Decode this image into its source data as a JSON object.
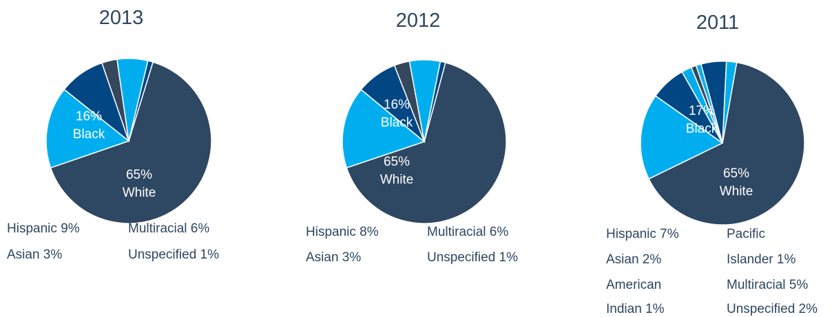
{
  "colors": {
    "navy": "#2e4762",
    "slate": "#34475c",
    "mid_blue": "#024783",
    "light_blue": "#00aeef",
    "white": "#ffffff",
    "text": "#2d4660"
  },
  "chart_data": [
    {
      "type": "pie",
      "title": "2013",
      "slices": [
        {
          "name": "White",
          "value": 65,
          "color": "#2e4762",
          "label": "65%\nWhite"
        },
        {
          "name": "Black",
          "value": 16,
          "color": "#00aeef",
          "label": "16%\nBlack"
        },
        {
          "name": "Hispanic",
          "value": 9,
          "color": "#024783"
        },
        {
          "name": "Asian",
          "value": 3,
          "color": "#34475c"
        },
        {
          "name": "Multiracial",
          "value": 6,
          "color": "#00aeef"
        },
        {
          "name": "Unspecified",
          "value": 1,
          "color": "#024783"
        }
      ],
      "legend": [
        "Hispanic 9%",
        "Multiracial 6%",
        "Asian 3%",
        "Unspecified 1%"
      ]
    },
    {
      "type": "pie",
      "title": "2012",
      "slices": [
        {
          "name": "White",
          "value": 65,
          "color": "#2e4762",
          "label": "65%\nWhite"
        },
        {
          "name": "Black",
          "value": 16,
          "color": "#00aeef",
          "label": "16%\nBlack"
        },
        {
          "name": "Hispanic",
          "value": 8,
          "color": "#024783"
        },
        {
          "name": "Asian",
          "value": 3,
          "color": "#34475c"
        },
        {
          "name": "Multiracial",
          "value": 6,
          "color": "#00aeef"
        },
        {
          "name": "Unspecified",
          "value": 1,
          "color": "#024783"
        }
      ],
      "legend": [
        "Hispanic 8%",
        "Multiracial 6%",
        "Asian 3%",
        "Unspecified 1%"
      ]
    },
    {
      "type": "pie",
      "title": "2011",
      "slices": [
        {
          "name": "White",
          "value": 65,
          "color": "#2e4762",
          "label": "65%\nWhite"
        },
        {
          "name": "Black",
          "value": 17,
          "color": "#00aeef",
          "label": "17%\nBlack"
        },
        {
          "name": "Hispanic",
          "value": 7,
          "color": "#024783"
        },
        {
          "name": "Asian",
          "value": 2,
          "color": "#00aeef"
        },
        {
          "name": "American Indian",
          "value": 1,
          "color": "#34475c"
        },
        {
          "name": "Pacific Islander",
          "value": 1,
          "color": "#00aeef"
        },
        {
          "name": "Multiracial",
          "value": 5,
          "color": "#024783"
        },
        {
          "name": "Unspecified",
          "value": 2,
          "color": "#00aeef"
        }
      ],
      "legend": [
        "Hispanic 7%",
        "Pacific",
        "Asian 2%",
        "Islander 1%",
        "American",
        "Multiracial 5%",
        "Indian 1%",
        "Unspecified 2%"
      ]
    }
  ]
}
